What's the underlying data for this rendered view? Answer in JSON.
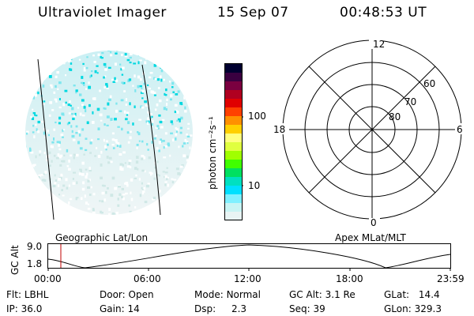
{
  "header": {
    "title": "Ultraviolet Imager",
    "date": "15 Sep 07",
    "time": "00:48:53 UT"
  },
  "colorbar": {
    "unit_label": "photon cm⁻²s⁻¹",
    "ticks": [
      "100",
      "10"
    ],
    "colors": [
      "#000030",
      "#3a0040",
      "#7a0040",
      "#b00020",
      "#e00000",
      "#ff4000",
      "#ff9000",
      "#ffd000",
      "#ffff80",
      "#e0ff40",
      "#a0ff00",
      "#40ff00",
      "#00e060",
      "#00e0c0",
      "#00e0ff",
      "#80f0ff",
      "#c8f4f4",
      "#e8f4f4"
    ]
  },
  "polar": {
    "clock_labels": {
      "top": "12",
      "left": "18",
      "right": "6",
      "bottom": "0"
    },
    "lat_labels": [
      "60",
      "70",
      "80"
    ]
  },
  "strip": {
    "left_label": "Geographic Lat/Lon",
    "right_label": "Apex MLat/MLT",
    "axis_title": "GC Alt",
    "y_ticks": [
      "9.0",
      "1.8"
    ],
    "x_ticks": [
      "00:00",
      "06:00",
      "12:00",
      "18:00",
      "23:59"
    ]
  },
  "info": {
    "row1": [
      {
        "key": "Flt:",
        "value": "LBHL"
      },
      {
        "key": "Door:",
        "value": "Open"
      },
      {
        "key": "Mode:",
        "value": "Normal"
      },
      {
        "key": "GC Alt:",
        "value": "3.1 Re"
      },
      {
        "key": "GLat:",
        "value": "14.4"
      }
    ],
    "row2": [
      {
        "key": "IP:",
        "value": "36.0"
      },
      {
        "key": "Gain:",
        "value": "14"
      },
      {
        "key": "Dsp:",
        "value": "2.3"
      },
      {
        "key": "Seq:",
        "value": "39"
      },
      {
        "key": "GLon:",
        "value": "329.3"
      }
    ]
  }
}
